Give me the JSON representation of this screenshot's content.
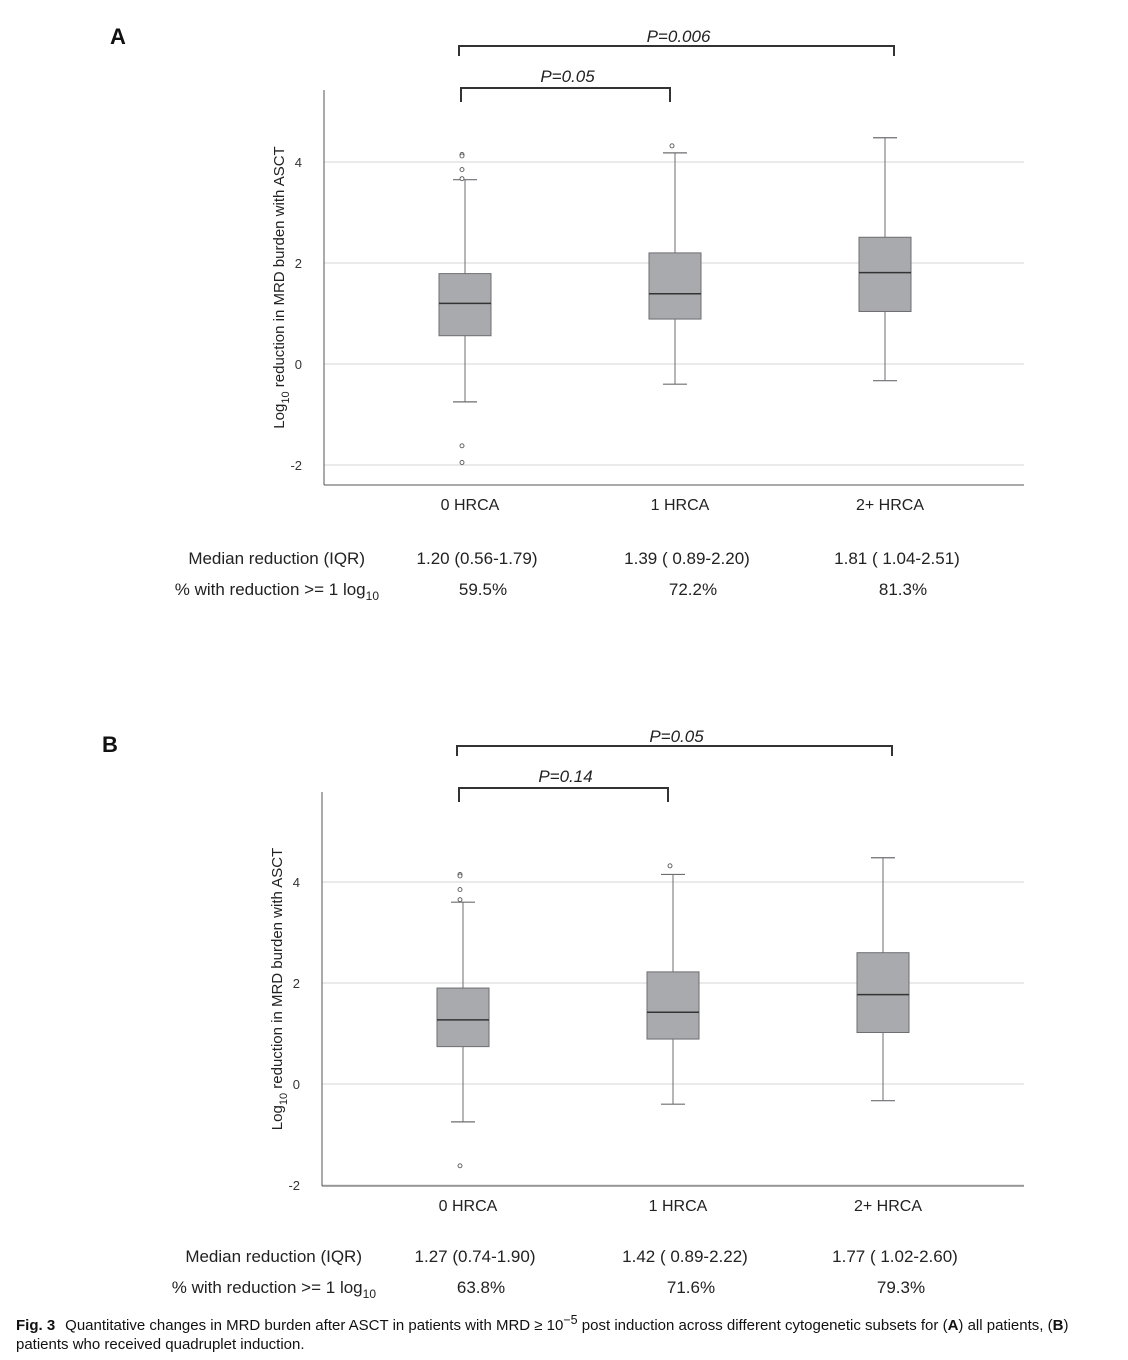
{
  "chart_data": [
    {
      "type": "box",
      "panel": "A",
      "ylabel_main": "Log",
      "ylabel_sub": "10",
      "ylabel_rest": " reduction in MRD burden with ASCT",
      "yticks": [
        "-2",
        "0",
        "2",
        "4"
      ],
      "ylim": [
        -2.4,
        5.4
      ],
      "grid": true,
      "categories": [
        "0 HRCA",
        "1 HRCA",
        "2+ HRCA"
      ],
      "boxes": [
        {
          "category": "0 HRCA",
          "whisker_low": -0.75,
          "q1": 0.56,
          "median": 1.2,
          "q3": 1.79,
          "whisker_high": 3.65,
          "outliers": [
            4.15,
            4.12,
            3.85,
            3.67,
            -1.62,
            -1.95
          ]
        },
        {
          "category": "1 HRCA",
          "whisker_low": -0.4,
          "q1": 0.89,
          "median": 1.39,
          "q3": 2.2,
          "whisker_high": 4.18,
          "outliers": [
            4.32
          ]
        },
        {
          "category": "2+ HRCA",
          "whisker_low": -0.33,
          "q1": 1.04,
          "median": 1.81,
          "q3": 2.51,
          "whisker_high": 4.48,
          "outliers": []
        }
      ],
      "comparisons": [
        {
          "from": "0 HRCA",
          "to": "1 HRCA",
          "label": "P=0.05"
        },
        {
          "from": "0 HRCA",
          "to": "2+ HRCA",
          "label": "P=0.006"
        }
      ],
      "table": {
        "row1_label": "Median reduction (IQR)",
        "row1_values": [
          "1.20 (0.56-1.79)",
          "1.39 ( 0.89-2.20)",
          "1.81 ( 1.04-2.51)"
        ],
        "row2_label_main": "% with reduction >= 1 log",
        "row2_label_sub": "10",
        "row2_values": [
          "59.5%",
          "72.2%",
          "81.3%"
        ]
      }
    },
    {
      "type": "box",
      "panel": "B",
      "ylabel_main": "Log",
      "ylabel_sub": "10",
      "ylabel_rest": " reduction in MRD burden with ASCT",
      "yticks": [
        "-2",
        "0",
        "2",
        "4"
      ],
      "ylim": [
        -2.0,
        5.8
      ],
      "grid": true,
      "categories": [
        "0 HRCA",
        "1 HRCA",
        "2+ HRCA"
      ],
      "boxes": [
        {
          "category": "0 HRCA",
          "whisker_low": -0.75,
          "q1": 0.74,
          "median": 1.27,
          "q3": 1.9,
          "whisker_high": 3.6,
          "outliers": [
            4.15,
            4.12,
            3.85,
            3.65,
            -1.62
          ]
        },
        {
          "category": "1 HRCA",
          "whisker_low": -0.4,
          "q1": 0.89,
          "median": 1.42,
          "q3": 2.22,
          "whisker_high": 4.15,
          "outliers": [
            4.32
          ]
        },
        {
          "category": "2+ HRCA",
          "whisker_low": -0.33,
          "q1": 1.02,
          "median": 1.77,
          "q3": 2.6,
          "whisker_high": 4.48,
          "outliers": []
        }
      ],
      "comparisons": [
        {
          "from": "0 HRCA",
          "to": "1 HRCA",
          "label": "P=0.14"
        },
        {
          "from": "0 HRCA",
          "to": "2+ HRCA",
          "label": "P=0.05"
        }
      ],
      "table": {
        "row1_label": "Median reduction (IQR)",
        "row1_values": [
          "1.27 (0.74-1.90)",
          "1.42 ( 0.89-2.22)",
          "1.77 ( 1.02-2.60)"
        ],
        "row2_label_main": "% with reduction >= 1 log",
        "row2_label_sub": "10",
        "row2_values": [
          "63.8%",
          "71.6%",
          "79.3%"
        ]
      }
    }
  ],
  "caption": {
    "fig_label": "Fig. 3",
    "text_before": "Quantitative changes in MRD burden after ASCT in patients with MRD ≥ 10",
    "superscript": "−5",
    "text_mid1": " post induction across different cytogenetic subsets for (",
    "bold_a": "A",
    "text_mid2": ") all patients, (",
    "bold_b": "B",
    "text_after": ") patients who received quadruplet induction."
  },
  "colors": {
    "box_fill": "#a9aaad",
    "box_stroke": "#6e6e72",
    "grid": "#d6d6d6",
    "axis": "#555555",
    "bracket": "#333333"
  }
}
